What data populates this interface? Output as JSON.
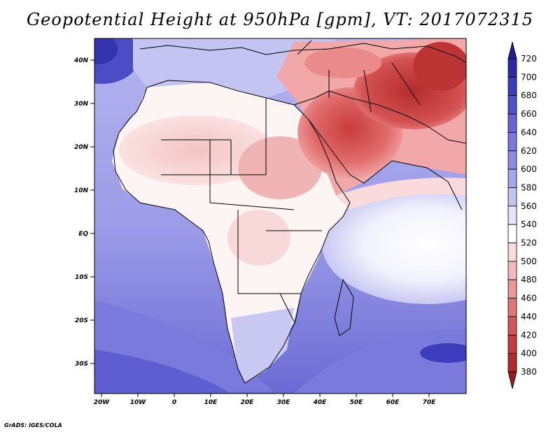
{
  "title": "Geopotential Height at 950hPa [gpm], VT: 2017072315",
  "credit": "GrADS: IGES/COLA",
  "lat_labels": [
    "40N",
    "30N",
    "20N",
    "10N",
    "EQ",
    "10S",
    "20S",
    "30S"
  ],
  "lon_labels": [
    "20W",
    "10W",
    "0",
    "10E",
    "20E",
    "30E",
    "40E",
    "50E",
    "60E",
    "70E"
  ],
  "colorbar": {
    "levels": [
      "720",
      "700",
      "680",
      "660",
      "640",
      "620",
      "600",
      "580",
      "560",
      "540",
      "520",
      "500",
      "480",
      "460",
      "440",
      "420",
      "400",
      "380"
    ],
    "colors": [
      "#1e1e8c",
      "#2a2aa8",
      "#3c3cbe",
      "#5050cc",
      "#6464d6",
      "#7878de",
      "#8c8ce6",
      "#a6a6ee",
      "#c4c4f4",
      "#e4e4fa",
      "#ffffff",
      "#fadcdc",
      "#f2baba",
      "#ea9898",
      "#e07676",
      "#d45656",
      "#c43c3c",
      "#b02a2a",
      "#961e1e"
    ]
  },
  "map": {
    "region": "Africa and Middle East",
    "ocean_color": "#8f8fe2",
    "high_color": "#5a5ad2",
    "land_low_color": "#f6cccc",
    "arabia_color": "#d25050",
    "iran_color": "#c43a3a"
  }
}
